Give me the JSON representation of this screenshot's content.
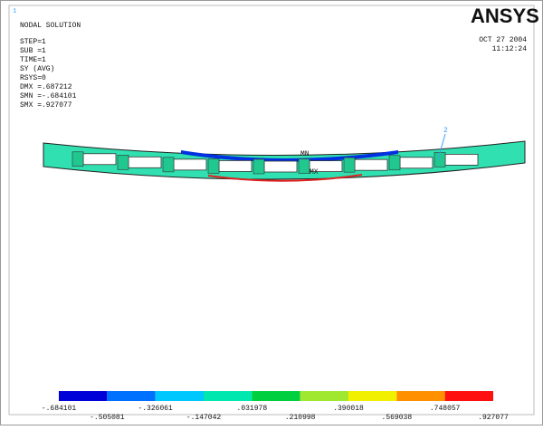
{
  "window_number": "1",
  "header": {
    "title": "NODAL SOLUTION",
    "info": [
      "STEP=1",
      "SUB =1",
      "TIME=1",
      "SY       (AVG)",
      "RSYS=0",
      "DMX =.687212",
      "SMN =-.684101",
      "SMX =.927077"
    ]
  },
  "logo": "ANSYS",
  "date": "OCT 27 2004",
  "time": "11:12:24",
  "markers": {
    "mn": "MN",
    "mx": "MX",
    "node": "2"
  },
  "legend": {
    "colors": [
      "#0000d8",
      "#0070ff",
      "#00c8ff",
      "#00e8b0",
      "#00d040",
      "#a0e830",
      "#f0f000",
      "#ff9000",
      "#ff1010"
    ],
    "labels": [
      "-.684101",
      "-.505081",
      "-.326061",
      "-.147042",
      ".031978",
      ".210998",
      ".390018",
      ".569038",
      ".748057",
      ".927077"
    ]
  }
}
